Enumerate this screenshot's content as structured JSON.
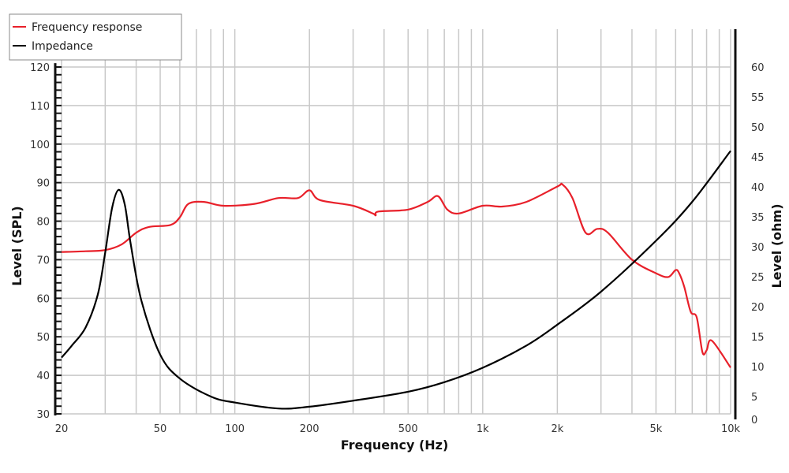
{
  "chart_data": {
    "type": "line",
    "title": "",
    "xlabel": "Frequency (Hz)",
    "ylabel": "Level (SPL)",
    "y2label": "Level (ohm)",
    "xscale": "log",
    "xlim": [
      20,
      10000
    ],
    "ylim": [
      30,
      120
    ],
    "y2lim": [
      0,
      60
    ],
    "grid": true,
    "legend_position": "top-left",
    "x_ticks": [
      20,
      50,
      100,
      200,
      500,
      1000,
      2000,
      5000,
      10000
    ],
    "x_tick_labels": [
      "20",
      "50",
      "100",
      "200",
      "500",
      "1k",
      "2k",
      "5k",
      "10k"
    ],
    "y_ticks": [
      30,
      40,
      50,
      60,
      70,
      80,
      90,
      100,
      110,
      120
    ],
    "y_tick_labels": [
      "30",
      "40",
      "50",
      "60",
      "70",
      "80",
      "90",
      "100",
      "110",
      "120"
    ],
    "y2_ticks": [
      0,
      5,
      10,
      15,
      20,
      25,
      30,
      35,
      40,
      45,
      50,
      55,
      60
    ],
    "y2_tick_labels": [
      "0",
      "5",
      "10",
      "15",
      "20",
      "25",
      "30",
      "35",
      "40",
      "45",
      "50",
      "55",
      "60"
    ],
    "series": [
      {
        "name": "Frequency response",
        "axis": "left",
        "color": "#e8202a",
        "x": [
          20,
          25,
          30,
          35,
          40,
          45,
          55,
          60,
          65,
          75,
          90,
          120,
          150,
          180,
          200,
          220,
          300,
          360,
          370,
          380,
          500,
          600,
          660,
          720,
          800,
          1000,
          1200,
          1500,
          2000,
          2100,
          2300,
          2600,
          2900,
          3200,
          4000,
          5000,
          5600,
          6000,
          6200,
          6500,
          6900,
          7300,
          7700,
          8000,
          8400,
          10000
        ],
        "values": [
          72,
          72.2,
          72.5,
          74,
          77,
          78.5,
          79,
          81,
          84.5,
          85,
          84,
          84.5,
          86,
          86,
          88,
          85.5,
          84,
          82,
          81.5,
          82.5,
          83,
          85,
          86.5,
          83,
          82,
          84,
          83.8,
          85,
          89,
          89.5,
          86,
          77,
          78,
          77,
          70,
          66.5,
          65.5,
          67.3,
          66.5,
          63,
          56.5,
          55,
          46,
          46.5,
          49,
          42
        ]
      },
      {
        "name": "Impedance",
        "axis": "right",
        "color": "#000000",
        "x": [
          20,
          22,
          25,
          28,
          30,
          32,
          34,
          36,
          38,
          42,
          50,
          60,
          80,
          100,
          150,
          200,
          300,
          500,
          700,
          1000,
          1500,
          2000,
          3000,
          5000,
          7000,
          10000
        ],
        "values": [
          11.5,
          13.5,
          16.5,
          22,
          29,
          36.5,
          39.5,
          37,
          30.5,
          21,
          12,
          8,
          5,
          4,
          3,
          3.3,
          4.3,
          5.8,
          7.4,
          9.8,
          13.5,
          17,
          22.5,
          31,
          37.5,
          46
        ]
      }
    ]
  }
}
